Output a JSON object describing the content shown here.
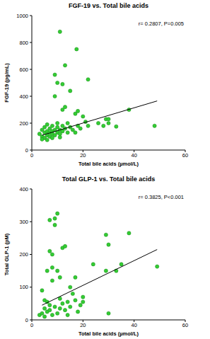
{
  "chart_data": [
    {
      "type": "scatter",
      "title": "FGF-19 vs. Total bile acids",
      "x_label": "Total bile acids (µmol/L)",
      "y_label": "FGF-19 (pg/mL)",
      "annotation": "r= 0.2807, P=0.005",
      "xlim": [
        0,
        60
      ],
      "xticks": [
        0,
        20,
        40,
        60
      ],
      "ylim": [
        0,
        1000
      ],
      "yticks": [
        0,
        200,
        400,
        600,
        800,
        1000
      ],
      "grid": false,
      "series": [
        {
          "type": "scatter",
          "color": "#33cc33",
          "marker": "circle",
          "x": [
            3,
            4,
            4,
            5,
            5,
            5,
            6,
            6,
            6,
            7,
            7,
            7,
            8,
            8,
            8,
            9,
            9,
            9,
            9,
            10,
            10,
            10,
            10,
            11,
            11,
            11,
            12,
            12,
            12,
            12,
            13,
            13,
            13,
            14,
            14,
            15,
            15,
            16,
            17,
            17,
            17.5,
            18,
            18,
            19,
            20,
            21,
            22,
            22,
            26,
            28,
            29,
            30,
            30,
            33,
            38,
            48,
            4,
            6,
            8,
            11
          ],
          "values": [
            120,
            100,
            150,
            130,
            90,
            170,
            110,
            140,
            190,
            100,
            160,
            130,
            120,
            180,
            90,
            560,
            400,
            150,
            110,
            500,
            130,
            200,
            170,
            880,
            120,
            150,
            490,
            300,
            180,
            140,
            630,
            320,
            160,
            200,
            130,
            440,
            170,
            150,
            270,
            130,
            750,
            290,
            180,
            160,
            250,
            210,
            525,
            180,
            200,
            180,
            230,
            230,
            200,
            175,
            300,
            180,
            80,
            75,
            140,
            95
          ]
        },
        {
          "type": "line",
          "color": "#000000",
          "line_style": "solid",
          "x": [
            4,
            49
          ],
          "values": [
            110,
            365
          ]
        }
      ]
    },
    {
      "type": "scatter",
      "title": "Total GLP-1 vs. Total bile acids",
      "x_label": "Total bile acids (µmol/L)",
      "y_label": "Total GLP-1 (pM)",
      "annotation": "r= 0.3825, P<0.001",
      "xlim": [
        0,
        60
      ],
      "xticks": [
        0,
        20,
        40,
        60
      ],
      "ylim": [
        0,
        400
      ],
      "yticks": [
        0,
        100,
        200,
        300,
        400
      ],
      "grid": false,
      "series": [
        {
          "type": "scatter",
          "color": "#33cc33",
          "marker": "circle",
          "x": [
            3,
            4,
            4,
            5,
            5,
            6,
            6,
            6,
            7,
            7,
            7,
            8,
            8,
            8,
            8,
            9,
            9,
            9,
            10,
            10,
            10,
            11,
            11,
            12,
            12,
            13,
            13,
            14,
            15,
            15,
            16,
            17,
            17,
            18,
            19,
            20,
            20,
            24,
            29,
            29,
            30,
            30,
            33,
            35,
            38,
            49,
            5,
            7,
            11,
            14
          ],
          "values": [
            15,
            90,
            20,
            60,
            10,
            55,
            150,
            25,
            305,
            210,
            30,
            200,
            160,
            120,
            15,
            310,
            290,
            40,
            325,
            150,
            20,
            130,
            35,
            220,
            50,
            225,
            30,
            15,
            100,
            40,
            80,
            130,
            60,
            25,
            45,
            70,
            55,
            170,
            260,
            150,
            230,
            20,
            150,
            170,
            265,
            163,
            35,
            45,
            65,
            55
          ]
        },
        {
          "type": "line",
          "color": "#000000",
          "line_style": "solid",
          "x": [
            4,
            49
          ],
          "values": [
            45,
            215
          ]
        }
      ]
    }
  ]
}
